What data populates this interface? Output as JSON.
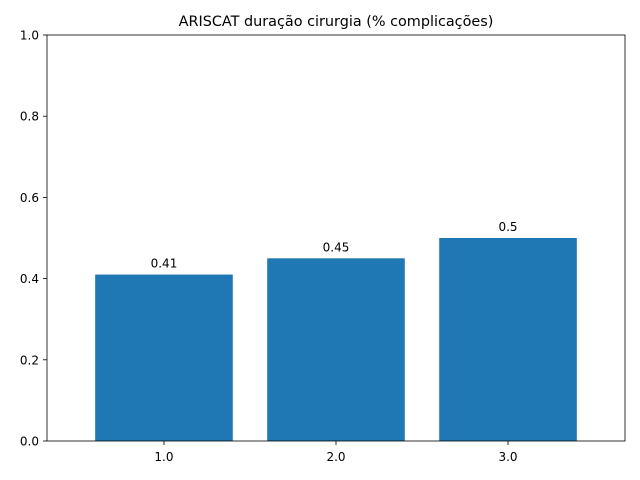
{
  "chart_data": {
    "type": "bar",
    "title": "ARISCAT duração cirurgia (% complicações)",
    "xlabel": "",
    "ylabel": "",
    "categories": [
      "1.0",
      "2.0",
      "3.0"
    ],
    "values": [
      0.41,
      0.45,
      0.5
    ],
    "value_labels": [
      "0.41",
      "0.45",
      "0.5"
    ],
    "ylim": [
      0,
      1.0
    ],
    "yticks": [
      "0.0",
      "0.2",
      "0.4",
      "0.6",
      "0.8",
      "1.0"
    ],
    "bar_color": "#1f77b4",
    "grid": false,
    "legend": "none"
  }
}
